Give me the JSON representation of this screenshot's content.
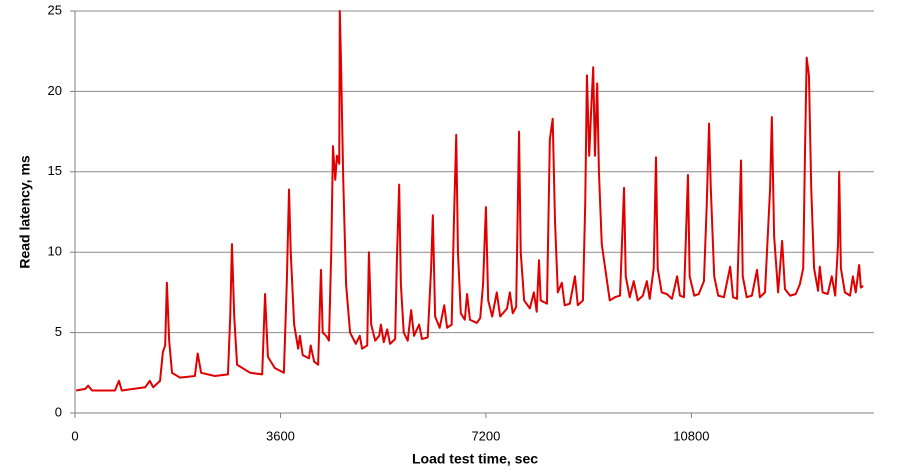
{
  "chart_data": {
    "type": "line",
    "x_label": "Load test time, sec",
    "y_label": "Read latency, ms",
    "xlim": [
      0,
      14000
    ],
    "xticks": [
      0,
      3600,
      7200,
      10800
    ],
    "ylim": [
      0,
      25
    ],
    "yticks": [
      0,
      5,
      10,
      15,
      20,
      25
    ],
    "grid": true,
    "color": "#e00000",
    "x": [
      20,
      180,
      230,
      300,
      700,
      770,
      820,
      1230,
      1310,
      1370,
      1490,
      1540,
      1580,
      1610,
      1650,
      1700,
      1840,
      2100,
      2150,
      2210,
      2450,
      2680,
      2720,
      2750,
      2790,
      2840,
      3070,
      3280,
      3330,
      3380,
      3500,
      3660,
      3710,
      3750,
      3780,
      3840,
      3910,
      3940,
      3990,
      4100,
      4130,
      4190,
      4260,
      4310,
      4340,
      4400,
      4450,
      4490,
      4520,
      4560,
      4590,
      4630,
      4640,
      4660,
      4700,
      4750,
      4820,
      4920,
      4990,
      5030,
      5120,
      5150,
      5190,
      5260,
      5330,
      5360,
      5410,
      5470,
      5520,
      5610,
      5640,
      5680,
      5710,
      5760,
      5830,
      5890,
      5940,
      6030,
      6080,
      6180,
      6240,
      6270,
      6310,
      6390,
      6470,
      6520,
      6600,
      6640,
      6680,
      6710,
      6760,
      6830,
      6870,
      6920,
      7040,
      7100,
      7150,
      7200,
      7240,
      7310,
      7390,
      7450,
      7570,
      7620,
      7670,
      7730,
      7780,
      7810,
      7870,
      7970,
      8040,
      8090,
      8130,
      8160,
      8270,
      8320,
      8370,
      8410,
      8460,
      8530,
      8580,
      8670,
      8760,
      8810,
      8900,
      8940,
      8970,
      9010,
      9040,
      9080,
      9110,
      9150,
      9180,
      9230,
      9290,
      9370,
      9460,
      9550,
      9620,
      9650,
      9720,
      9790,
      9860,
      9950,
      10020,
      10070,
      10140,
      10180,
      10210,
      10280,
      10370,
      10460,
      10550,
      10600,
      10670,
      10740,
      10770,
      10850,
      10930,
      11020,
      11070,
      11110,
      11140,
      11200,
      11270,
      11370,
      11480,
      11530,
      11600,
      11670,
      11700,
      11770,
      11860,
      11950,
      12000,
      12090,
      12180,
      12210,
      12250,
      12320,
      12390,
      12440,
      12530,
      12630,
      12700,
      12760,
      12790,
      12820,
      12860,
      12900,
      12950,
      13020,
      13050,
      13100,
      13190,
      13260,
      13320,
      13370,
      13390,
      13420,
      13490,
      13580,
      13630,
      13680,
      13740,
      13770,
      13810
    ],
    "values": [
      1.4,
      1.5,
      1.7,
      1.4,
      1.4,
      2.0,
      1.4,
      1.6,
      2.0,
      1.6,
      2.0,
      3.8,
      4.2,
      8.1,
      4.5,
      2.5,
      2.2,
      2.3,
      3.7,
      2.5,
      2.3,
      2.4,
      6.0,
      10.5,
      6.0,
      3.0,
      2.5,
      2.4,
      7.4,
      3.5,
      2.8,
      2.5,
      8.0,
      13.9,
      10,
      5.5,
      4.0,
      4.8,
      3.6,
      3.4,
      4.2,
      3.2,
      3.0,
      8.9,
      5.0,
      4.8,
      4.5,
      10,
      16.6,
      14.5,
      16,
      15.5,
      25,
      22,
      14.5,
      8,
      5,
      4.3,
      4.8,
      4.0,
      4.2,
      10.0,
      5.5,
      4.5,
      4.8,
      5.5,
      4.4,
      5.2,
      4.3,
      4.6,
      9.5,
      14.2,
      8,
      5,
      4.5,
      6.4,
      4.8,
      5.5,
      4.6,
      4.7,
      9,
      12.3,
      6,
      5.3,
      6.7,
      5.3,
      5.5,
      12,
      17.3,
      10,
      6.2,
      5.8,
      7.4,
      5.8,
      5.6,
      5.9,
      8,
      12.8,
      7,
      6,
      7.5,
      6,
      6.5,
      7.5,
      6.2,
      6.6,
      17.5,
      10,
      7,
      6.5,
      7.5,
      6.3,
      9.5,
      7,
      6.8,
      17,
      18.3,
      12,
      7.5,
      8.1,
      6.7,
      6.8,
      8.5,
      6.7,
      7,
      13,
      21,
      16,
      18.5,
      21.5,
      16,
      20.5,
      15,
      10.5,
      9,
      7,
      7.2,
      7.3,
      14,
      8.5,
      7.2,
      8.2,
      7.0,
      7.3,
      8.2,
      7.1,
      9,
      15.9,
      9,
      7.5,
      7.4,
      7.1,
      8.5,
      7.3,
      7.2,
      14.8,
      8.5,
      7.3,
      7.4,
      8.2,
      13,
      18,
      14,
      8.5,
      7.3,
      7.2,
      9.1,
      7.2,
      7.1,
      15.7,
      8.5,
      7.2,
      7.3,
      8.9,
      7.2,
      7.5,
      14,
      18.4,
      11,
      7.5,
      10.7,
      7.7,
      7.3,
      7.4,
      8,
      9,
      16,
      22.1,
      21,
      14,
      9,
      7.6,
      9.1,
      7.5,
      7.4,
      8.5,
      7.3,
      10.5,
      15,
      9,
      7.5,
      7.3,
      8.5,
      7.5,
      9.2,
      7.8,
      7.9
    ]
  }
}
